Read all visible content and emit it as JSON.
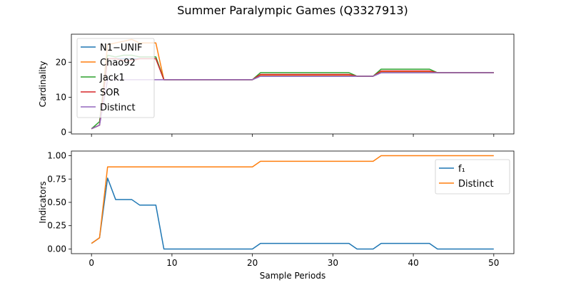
{
  "figure": {
    "title": "Summer Paralympic Games (Q3327913)"
  },
  "chart_data": [
    {
      "type": "line",
      "ylabel": "Cardinality",
      "xlabel": "",
      "xlim": [
        -2.5,
        52.5
      ],
      "ylim": [
        -0.5,
        28
      ],
      "xticks": [
        0,
        10,
        20,
        30,
        40,
        50
      ],
      "xtick_labels_visible": false,
      "yticks": [
        0,
        10,
        20
      ],
      "ytick_labels": [
        "0",
        "10",
        "20"
      ],
      "legend": {
        "position": "upper-left"
      },
      "x": [
        0,
        1,
        2,
        3,
        4,
        5,
        6,
        7,
        8,
        9,
        10,
        11,
        12,
        13,
        14,
        15,
        16,
        17,
        18,
        19,
        20,
        21,
        22,
        23,
        24,
        25,
        26,
        27,
        28,
        29,
        30,
        31,
        32,
        33,
        34,
        35,
        36,
        37,
        38,
        39,
        40,
        41,
        42,
        43,
        44,
        45,
        46,
        47,
        48,
        49,
        50
      ],
      "series": [
        {
          "name": "N1−UNIF",
          "color": "#1f77b4",
          "values": [
            1,
            2,
            21,
            21,
            21,
            21,
            21,
            21,
            21,
            15,
            15,
            15,
            15,
            15,
            15,
            15,
            15,
            15,
            15,
            15,
            15,
            16,
            16,
            16,
            16,
            16,
            16,
            16,
            16,
            16,
            16,
            16,
            16,
            16,
            16,
            16,
            17,
            17,
            17,
            17,
            17,
            17,
            17,
            17,
            17,
            17,
            17,
            17,
            17,
            17,
            17
          ]
        },
        {
          "name": "Chao92",
          "color": "#ff7f0e",
          "values": [
            1,
            2,
            25,
            25.5,
            26,
            26.5,
            25.5,
            25.5,
            25.5,
            15,
            15,
            15,
            15,
            15,
            15,
            15,
            15,
            15,
            15,
            15,
            15,
            16.3,
            16.3,
            16.3,
            16.3,
            16.3,
            16.3,
            16.3,
            16.3,
            16.3,
            16.3,
            16.3,
            16.3,
            16,
            16,
            16,
            17.3,
            17.3,
            17.3,
            17.3,
            17.3,
            17.3,
            17.3,
            17,
            17,
            17,
            17,
            17,
            17,
            17,
            17
          ]
        },
        {
          "name": "Jack1",
          "color": "#2ca02c",
          "values": [
            1,
            3,
            22,
            21.5,
            22,
            22,
            21.5,
            21.5,
            21.5,
            15,
            15,
            15,
            15,
            15,
            15,
            15,
            15,
            15,
            15,
            15,
            15,
            17,
            17,
            17,
            17,
            17,
            17,
            17,
            17,
            17,
            17,
            17,
            17,
            16,
            16,
            16,
            18,
            18,
            18,
            18,
            18,
            18,
            18,
            17,
            17,
            17,
            17,
            17,
            17,
            17,
            17
          ]
        },
        {
          "name": "SOR",
          "color": "#d62728",
          "values": [
            1,
            2,
            21,
            21,
            20.5,
            20.5,
            21,
            21,
            21,
            15,
            15,
            15,
            15,
            15,
            15,
            15,
            15,
            15,
            15,
            15,
            15,
            16.5,
            16.5,
            16.5,
            16.5,
            16.5,
            16.5,
            16.5,
            16.5,
            16.5,
            16.5,
            16.5,
            16.5,
            16,
            16,
            16,
            17.5,
            17.5,
            17.5,
            17.5,
            17.5,
            17.5,
            17.5,
            17,
            17,
            17,
            17,
            17,
            17,
            17,
            17
          ]
        },
        {
          "name": "Distinct",
          "color": "#9467bd",
          "values": [
            1,
            2,
            15,
            15,
            15,
            15,
            15,
            15,
            15,
            15,
            15,
            15,
            15,
            15,
            15,
            15,
            15,
            15,
            15,
            15,
            15,
            16,
            16,
            16,
            16,
            16,
            16,
            16,
            16,
            16,
            16,
            16,
            16,
            16,
            16,
            16,
            17,
            17,
            17,
            17,
            17,
            17,
            17,
            17,
            17,
            17,
            17,
            17,
            17,
            17,
            17
          ]
        }
      ]
    },
    {
      "type": "line",
      "ylabel": "Indicators",
      "xlabel": "Sample Periods",
      "xlim": [
        -2.5,
        52.5
      ],
      "ylim": [
        -0.05,
        1.05
      ],
      "xticks": [
        0,
        10,
        20,
        30,
        40,
        50
      ],
      "xtick_labels": [
        "0",
        "10",
        "20",
        "30",
        "40",
        "50"
      ],
      "yticks": [
        0,
        0.25,
        0.5,
        0.75,
        1.0
      ],
      "ytick_labels": [
        "0.00",
        "0.25",
        "0.50",
        "0.75",
        "1.00"
      ],
      "legend": {
        "position": "upper-right"
      },
      "x": [
        0,
        1,
        2,
        3,
        4,
        5,
        6,
        7,
        8,
        9,
        10,
        11,
        12,
        13,
        14,
        15,
        16,
        17,
        18,
        19,
        20,
        21,
        22,
        23,
        24,
        25,
        26,
        27,
        28,
        29,
        30,
        31,
        32,
        33,
        34,
        35,
        36,
        37,
        38,
        39,
        40,
        41,
        42,
        43,
        44,
        45,
        46,
        47,
        48,
        49,
        50
      ],
      "series": [
        {
          "name": "f₁",
          "color": "#1f77b4",
          "values": [
            0.06,
            0.12,
            0.76,
            0.53,
            0.53,
            0.53,
            0.47,
            0.47,
            0.47,
            0,
            0,
            0,
            0,
            0,
            0,
            0,
            0,
            0,
            0,
            0,
            0,
            0.06,
            0.06,
            0.06,
            0.06,
            0.06,
            0.06,
            0.06,
            0.06,
            0.06,
            0.06,
            0.06,
            0.06,
            0,
            0,
            0,
            0.06,
            0.06,
            0.06,
            0.06,
            0.06,
            0.06,
            0.06,
            0,
            0,
            0,
            0,
            0,
            0,
            0,
            0
          ]
        },
        {
          "name": "Distinct",
          "color": "#ff7f0e",
          "values": [
            0.06,
            0.12,
            0.88,
            0.88,
            0.88,
            0.88,
            0.88,
            0.88,
            0.88,
            0.88,
            0.88,
            0.88,
            0.88,
            0.88,
            0.88,
            0.88,
            0.88,
            0.88,
            0.88,
            0.88,
            0.88,
            0.94,
            0.94,
            0.94,
            0.94,
            0.94,
            0.94,
            0.94,
            0.94,
            0.94,
            0.94,
            0.94,
            0.94,
            0.94,
            0.94,
            0.94,
            1.0,
            1.0,
            1.0,
            1.0,
            1.0,
            1.0,
            1.0,
            1.0,
            1.0,
            1.0,
            1.0,
            1.0,
            1.0,
            1.0,
            1.0
          ]
        }
      ]
    }
  ]
}
